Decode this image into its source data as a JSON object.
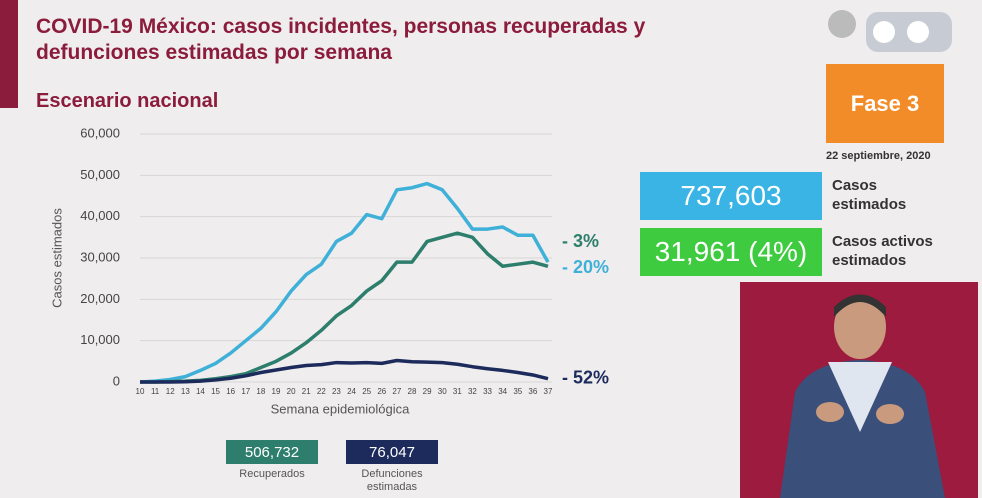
{
  "header": {
    "title": "COVID-19 México: casos incidentes, personas recuperadas y defunciones estimadas por semana",
    "subtitle": "Escenario nacional"
  },
  "badge": {
    "phase": "Fase 3",
    "date": "22 septiembre, 2020"
  },
  "stats": [
    {
      "value": "737,603",
      "label": "Casos estimados",
      "color": "#3ab4e4"
    },
    {
      "value": "31,961 (4%)",
      "label": "Casos activos estimados",
      "color": "#3fcb3f"
    }
  ],
  "chart_data": {
    "type": "line",
    "ylabel": "Casos estimados",
    "xlabel": "Semana epidemiológica",
    "x": [
      10,
      11,
      12,
      13,
      14,
      15,
      16,
      17,
      18,
      19,
      20,
      21,
      22,
      23,
      24,
      25,
      26,
      27,
      28,
      29,
      30,
      31,
      32,
      33,
      34,
      35,
      36,
      37
    ],
    "xlim": [
      10,
      37
    ],
    "ylim": [
      0,
      60000
    ],
    "yticks": [
      0,
      {
        "value": 10000,
        "label": "10,000"
      },
      {
        "value": 20000,
        "label": "20,000"
      },
      {
        "value": 30000,
        "label": "30,000"
      },
      {
        "value": 40000,
        "label": "40,000"
      },
      {
        "value": 50000,
        "label": "50,000"
      },
      {
        "value": 60000,
        "label": "60,000"
      }
    ],
    "series": [
      {
        "color": "#3fb0d8",
        "change_label": "- 20%",
        "values": [
          0,
          200,
          600,
          1300,
          2800,
          4500,
          7000,
          10000,
          13000,
          17000,
          22000,
          26000,
          28500,
          34000,
          36000,
          40500,
          39500,
          46500,
          47000,
          48000,
          46500,
          42000,
          37000,
          37000,
          37500,
          35500,
          35500,
          29000
        ]
      },
      {
        "name": "Recuperados",
        "total_label": "506,732",
        "color": "#2d7e6c",
        "change_label": "- 3%",
        "values": [
          0,
          0,
          100,
          200,
          400,
          800,
          1300,
          2000,
          3500,
          5000,
          7000,
          9500,
          12500,
          16000,
          18500,
          22000,
          24500,
          29000,
          29000,
          34000,
          35000,
          36000,
          35000,
          31000,
          28000,
          28500,
          29000,
          28000
        ]
      },
      {
        "name": "Defunciones estimadas",
        "total_label": "76,047",
        "color": "#1c2b5c",
        "change_label": "- 52%",
        "values": [
          0,
          0,
          0,
          50,
          200,
          500,
          900,
          1500,
          2300,
          2900,
          3500,
          4000,
          4200,
          4700,
          4600,
          4700,
          4500,
          5200,
          4900,
          4800,
          4700,
          4300,
          3700,
          3200,
          2800,
          2300,
          1700,
          800
        ]
      }
    ]
  }
}
